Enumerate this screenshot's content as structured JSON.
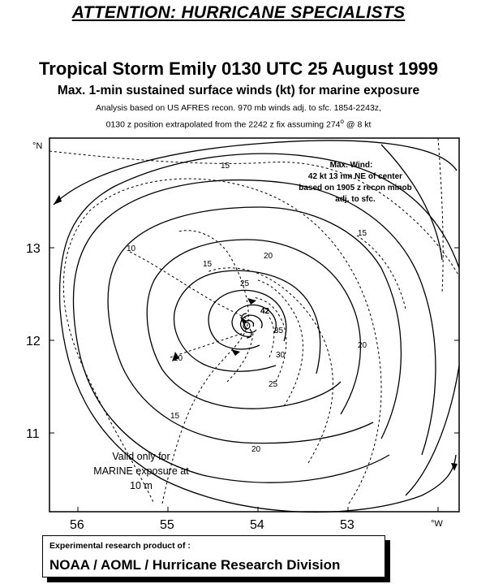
{
  "header": {
    "attention": "ATTENTION: HURRICANE SPECIALISTS",
    "title": "Tropical Storm Emily 0130 UTC 25 August 1999",
    "subtitle": "Max. 1-min sustained surface winds (kt) for marine exposure",
    "note_line1": "Analysis based on US AFRES recon. 970 mb winds adj. to sfc. 1854-2243z,",
    "note_line2_before": "0130 z position extrapolated from the 2242 z fix assuming  274",
    "note_line2_sup": "o",
    "note_line2_after": " @ 8 kt"
  },
  "map": {
    "lat_unit": "°N",
    "lon_unit": "°W",
    "lat_ticks": [
      "13",
      "12",
      "11"
    ],
    "lon_ticks": [
      "56",
      "55",
      "54",
      "53"
    ],
    "isotach_labels": [
      "15",
      "15",
      "10",
      "15",
      "20",
      "25",
      "42",
      "35",
      "30",
      "10",
      "25",
      "20",
      "15",
      "20"
    ],
    "max_wind_box": {
      "line1": "Max. Wind:",
      "line2": "42 kt  13 nm NE of center",
      "line3": "based on 1905 z recon minob",
      "line4": "adj. to sfc."
    },
    "validity_note": {
      "line1": "Valid only for",
      "line2": "MARINE exposure at",
      "line3": "10 m"
    }
  },
  "credit": {
    "small": "Experimental research product of :",
    "big": "NOAA / AOML / Hurricane Research Division"
  }
}
